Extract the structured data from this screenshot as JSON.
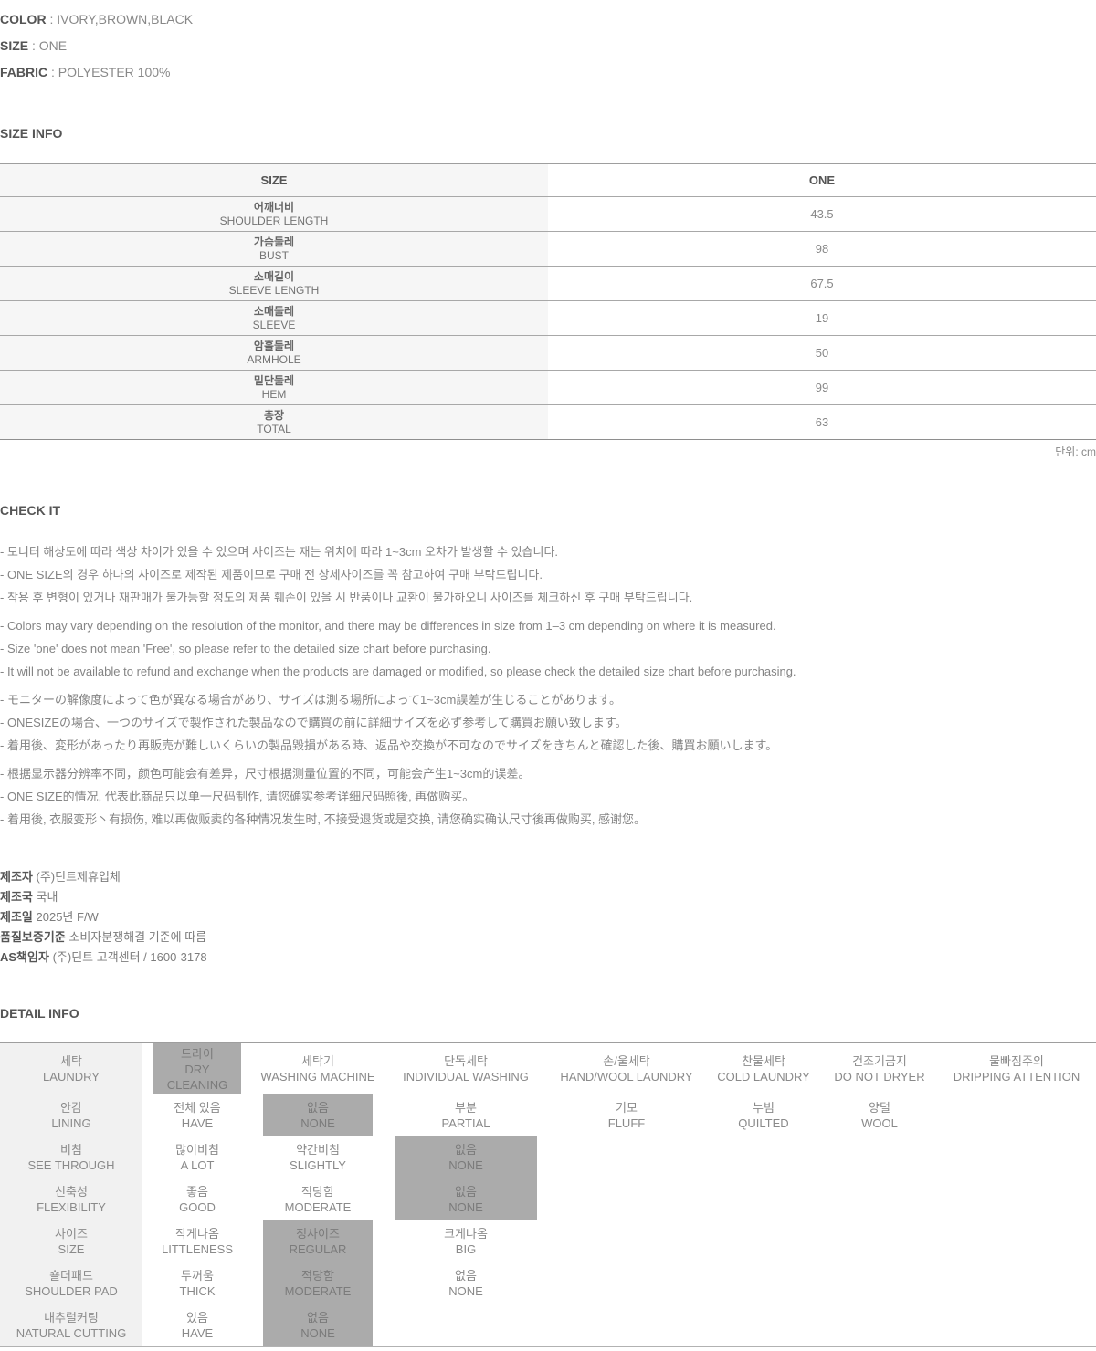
{
  "product": {
    "separator": " : ",
    "fields": [
      {
        "label": "COLOR",
        "value": "IVORY,BROWN,BLACK"
      },
      {
        "label": "SIZE",
        "value": "ONE"
      },
      {
        "label": "FABRIC",
        "value": "POLYESTER 100%"
      }
    ]
  },
  "size_info": {
    "title": "SIZE INFO",
    "header": {
      "left": "SIZE",
      "right": "ONE"
    },
    "rows": [
      {
        "kr": "어깨너비",
        "en": "SHOULDER LENGTH",
        "value": "43.5"
      },
      {
        "kr": "가슴둘레",
        "en": "BUST",
        "value": "98"
      },
      {
        "kr": "소매길이",
        "en": "SLEEVE LENGTH",
        "value": "67.5"
      },
      {
        "kr": "소매둘레",
        "en": "SLEEVE",
        "value": "19"
      },
      {
        "kr": "암홀둘레",
        "en": "ARMHOLE",
        "value": "50"
      },
      {
        "kr": "밑단둘레",
        "en": "HEM",
        "value": "99"
      },
      {
        "kr": "총장",
        "en": "TOTAL",
        "value": "63"
      }
    ],
    "unit": "단위: cm"
  },
  "check_it": {
    "title": "CHECK IT",
    "korean": [
      "- 모니터 해상도에 따라 색상 차이가 있을 수 있으며 사이즈는 재는 위치에 따라 1~3cm 오차가 발생할 수 있습니다.",
      "- ONE SIZE의 경우 하나의 사이즈로 제작된 제품이므로 구매 전 상세사이즈를 꼭 참고하여 구매 부탁드립니다.",
      "- 착용 후 변형이 있거나 재판매가 불가능할 정도의 제품 훼손이 있을 시 반품이나 교환이 불가하오니 사이즈를 체크하신 후 구매 부탁드립니다."
    ],
    "english": [
      "- Colors may vary depending on the resolution of the monitor, and there may be differences in size from 1–3 cm depending on where it is measured.",
      "- Size 'one' does not mean 'Free', so please refer to the detailed size chart before purchasing.",
      "- It will not be available to refund and exchange when the products are damaged or modified, so please check the detailed size chart before purchasing."
    ],
    "japanese": [
      "- モニターの解像度によって色が異なる場合があり、サイズは測る場所によって1~3cm誤差が生じることがあります。",
      "- ONESIZEの場合、一つのサイズで製作された製品なので購買の前に詳細サイズを必ず参考して購買お願い致します。",
      "- 着用後、変形があったり再販売が難しいくらいの製品毀損がある時、返品や交換が不可なのでサイズをきちんと確認した後、購買お願いします。"
    ],
    "chinese": [
      "- 根据显示器分辨率不同，颜色可能会有差异，尺寸根据测量位置的不同，可能会产生1~3cm的误差。",
      "- ONE SIZE的情况, 代表此商品只以单一尺码制作, 请您确实参考详细尺码照後, 再做购买。",
      "- 着用後, 衣服变形丶有损伤, 难以再做贩卖的各种情况发生时, 不接受退货或是交换, 请您确实确认尺寸後再做购买, 感谢您。"
    ]
  },
  "manufacturer": {
    "rows": [
      {
        "label": "제조자",
        "value": "(주)딘트제휴업체"
      },
      {
        "label": "제조국",
        "value": "국내"
      },
      {
        "label": "제조일",
        "value": "2025년 F/W"
      },
      {
        "label": "품질보증기준",
        "value": "소비자분쟁해결 기준에 따름"
      },
      {
        "label": "AS책임자",
        "value": "(주)딘트 고객센터 / 1600-3178"
      }
    ]
  },
  "detail_info": {
    "title": "DETAIL INFO",
    "rows": [
      {
        "label": {
          "kr": "세탁",
          "en": "LAUNDRY"
        },
        "options": [
          {
            "kr": "드라이",
            "en": "DRY CLEANING",
            "selected": true
          },
          {
            "kr": "세탁기",
            "en": "WASHING MACHINE"
          },
          {
            "kr": "단독세탁",
            "en": "INDIVIDUAL WASHING"
          },
          {
            "kr": "손/울세탁",
            "en": "HAND/WOOL LAUNDRY"
          },
          {
            "kr": "찬물세탁",
            "en": "COLD LAUNDRY"
          },
          {
            "kr": "건조기금지",
            "en": "DO NOT DRYER"
          },
          {
            "kr": "물빠짐주의",
            "en": "DRIPPING ATTENTION"
          }
        ]
      },
      {
        "label": {
          "kr": "안감",
          "en": "LINING"
        },
        "options": [
          {
            "kr": "전체 있음",
            "en": "HAVE"
          },
          {
            "kr": "없음",
            "en": "NONE",
            "selected": true
          },
          {
            "kr": "부분",
            "en": "PARTIAL"
          },
          {
            "kr": "기모",
            "en": "FLUFF"
          },
          {
            "kr": "누빔",
            "en": "QUILTED"
          },
          {
            "kr": "양털",
            "en": "WOOL"
          }
        ]
      },
      {
        "label": {
          "kr": "비침",
          "en": "SEE THROUGH"
        },
        "options": [
          {
            "kr": "많이비침",
            "en": "A LOT"
          },
          {
            "kr": "약간비침",
            "en": "SLIGHTLY"
          },
          {
            "kr": "없음",
            "en": "NONE",
            "selected": true
          }
        ]
      },
      {
        "label": {
          "kr": "신축성",
          "en": "FLEXIBILITY"
        },
        "options": [
          {
            "kr": "좋음",
            "en": "GOOD"
          },
          {
            "kr": "적당함",
            "en": "MODERATE"
          },
          {
            "kr": "없음",
            "en": "NONE",
            "selected": true
          }
        ]
      },
      {
        "label": {
          "kr": "사이즈",
          "en": "SIZE"
        },
        "options": [
          {
            "kr": "작게나옴",
            "en": "LITTLENESS"
          },
          {
            "kr": "정사이즈",
            "en": "REGULAR",
            "selected": true
          },
          {
            "kr": "크게나옴",
            "en": "BIG"
          }
        ]
      },
      {
        "label": {
          "kr": "숄더패드",
          "en": "SHOULDER PAD"
        },
        "options": [
          {
            "kr": "두꺼움",
            "en": "THICK"
          },
          {
            "kr": "적당함",
            "en": "MODERATE",
            "selected": true
          },
          {
            "kr": "없음",
            "en": "NONE"
          }
        ]
      },
      {
        "label": {
          "kr": "내추럴커팅",
          "en": "NATURAL CUTTING"
        },
        "options": [
          {
            "kr": "있음",
            "en": "HAVE"
          },
          {
            "kr": "없음",
            "en": "NONE",
            "selected": true
          }
        ]
      }
    ]
  }
}
